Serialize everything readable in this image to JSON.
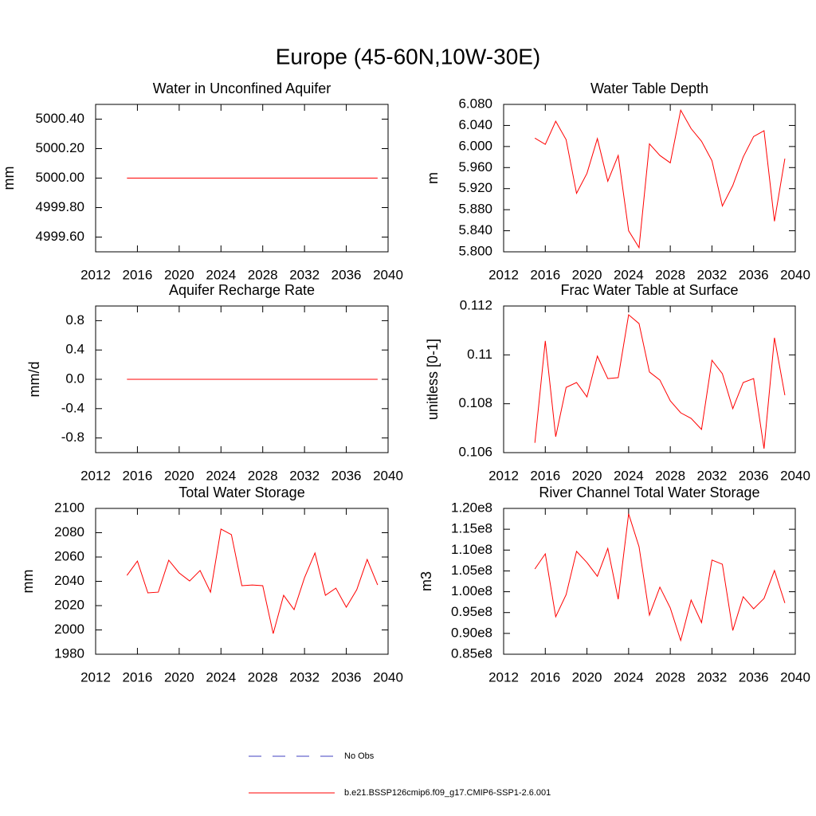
{
  "title": "Europe (45-60N,10W-30E)",
  "legend": [
    {
      "name": "No Obs",
      "color": "#4040c0",
      "dashed": true
    },
    {
      "name": "b.e21.BSSP126cmip6.f09_g17.CMIP6-SSP1-2.6.001",
      "color": "#ff0000",
      "dashed": false
    }
  ],
  "chart_data": [
    {
      "type": "line",
      "title": "Water in Unconfined Aquifer",
      "ylabel": "mm",
      "color": "#ff0000",
      "x": [
        2015,
        2016,
        2017,
        2018,
        2019,
        2020,
        2021,
        2022,
        2023,
        2024,
        2025,
        2026,
        2027,
        2028,
        2029,
        2030,
        2031,
        2032,
        2033,
        2034,
        2035,
        2036,
        2037,
        2038,
        2039
      ],
      "values": [
        5000,
        5000,
        5000,
        5000,
        5000,
        5000,
        5000,
        5000,
        5000,
        5000,
        5000,
        5000,
        5000,
        5000,
        5000,
        5000,
        5000,
        5000,
        5000,
        5000,
        5000,
        5000,
        5000,
        5000,
        5000
      ],
      "xlim": [
        2012,
        2040
      ],
      "xticks": [
        2012,
        2016,
        2020,
        2024,
        2028,
        2032,
        2036,
        2040
      ],
      "ylim": [
        4999.5,
        5000.5
      ],
      "yticks": [
        {
          "value": 4999.6,
          "label": "4999.60"
        },
        {
          "value": 4999.8,
          "label": "4999.80"
        },
        {
          "value": 5000.0,
          "label": "5000.00"
        },
        {
          "value": 5000.2,
          "label": "5000.20"
        },
        {
          "value": 5000.4,
          "label": "5000.40"
        }
      ]
    },
    {
      "type": "line",
      "title": "Water Table Depth",
      "ylabel": "m",
      "color": "#ff0000",
      "x": [
        2015,
        2016,
        2017,
        2018,
        2019,
        2020,
        2021,
        2022,
        2023,
        2024,
        2025,
        2026,
        2027,
        2028,
        2029,
        2030,
        2031,
        2032,
        2033,
        2034,
        2035,
        2036,
        2037,
        2038,
        2039
      ],
      "values": [
        6.016,
        6.004,
        6.048,
        6.013,
        5.911,
        5.949,
        6.015,
        5.934,
        5.983,
        5.84,
        5.808,
        6.005,
        5.983,
        5.969,
        6.069,
        6.034,
        6.01,
        5.973,
        5.887,
        5.926,
        5.98,
        6.019,
        6.03,
        5.858,
        5.977
      ],
      "xlim": [
        2012,
        2040
      ],
      "xticks": [
        2012,
        2016,
        2020,
        2024,
        2028,
        2032,
        2036,
        2040
      ],
      "ylim": [
        5.8,
        6.08
      ],
      "yticks": [
        {
          "value": 5.8,
          "label": "5.800"
        },
        {
          "value": 5.84,
          "label": "5.840"
        },
        {
          "value": 5.88,
          "label": "5.880"
        },
        {
          "value": 5.92,
          "label": "5.920"
        },
        {
          "value": 5.96,
          "label": "5.960"
        },
        {
          "value": 6.0,
          "label": "6.000"
        },
        {
          "value": 6.04,
          "label": "6.040"
        },
        {
          "value": 6.08,
          "label": "6.080"
        }
      ]
    },
    {
      "type": "line",
      "title": "Aquifer Recharge Rate",
      "ylabel": "mm/d",
      "color": "#ff0000",
      "x": [
        2015,
        2016,
        2017,
        2018,
        2019,
        2020,
        2021,
        2022,
        2023,
        2024,
        2025,
        2026,
        2027,
        2028,
        2029,
        2030,
        2031,
        2032,
        2033,
        2034,
        2035,
        2036,
        2037,
        2038,
        2039
      ],
      "values": [
        0,
        0,
        0,
        0,
        0,
        0,
        0,
        0,
        0,
        0,
        0,
        0,
        0,
        0,
        0,
        0,
        0,
        0,
        0,
        0,
        0,
        0,
        0,
        0,
        0
      ],
      "xlim": [
        2012,
        2040
      ],
      "xticks": [
        2012,
        2016,
        2020,
        2024,
        2028,
        2032,
        2036,
        2040
      ],
      "ylim": [
        -1,
        1
      ],
      "yticks": [
        {
          "value": -0.8,
          "label": "-0.8"
        },
        {
          "value": -0.4,
          "label": "-0.4"
        },
        {
          "value": 0,
          "label": "0.0"
        },
        {
          "value": 0.4,
          "label": "0.4"
        },
        {
          "value": 0.8,
          "label": "0.8"
        }
      ]
    },
    {
      "type": "line",
      "title": "Frac Water Table at Surface",
      "ylabel": "unitless [0-1]",
      "color": "#ff0000",
      "x": [
        2015,
        2016,
        2017,
        2018,
        2019,
        2020,
        2021,
        2022,
        2023,
        2024,
        2025,
        2026,
        2027,
        2028,
        2029,
        2030,
        2031,
        2032,
        2033,
        2034,
        2035,
        2036,
        2037,
        2038,
        2039
      ],
      "values": [
        0.1064,
        0.11057,
        0.10665,
        0.10867,
        0.10887,
        0.10828,
        0.10995,
        0.10903,
        0.10907,
        0.11164,
        0.11128,
        0.1093,
        0.10897,
        0.10812,
        0.10763,
        0.1074,
        0.10695,
        0.10978,
        0.10923,
        0.1078,
        0.10887,
        0.10903,
        0.10616,
        0.1107,
        0.10835
      ],
      "xlim": [
        2012,
        2040
      ],
      "xticks": [
        2012,
        2016,
        2020,
        2024,
        2028,
        2032,
        2036,
        2040
      ],
      "ylim": [
        0.106,
        0.112
      ],
      "yticks": [
        0.106,
        0.108,
        0.11,
        0.112
      ]
    },
    {
      "type": "line",
      "title": "Total Water Storage",
      "ylabel": "mm",
      "color": "#ff0000",
      "x": [
        2015,
        2016,
        2017,
        2018,
        2019,
        2020,
        2021,
        2022,
        2023,
        2024,
        2025,
        2026,
        2027,
        2028,
        2029,
        2030,
        2031,
        2032,
        2033,
        2034,
        2035,
        2036,
        2037,
        2038,
        2039
      ],
      "values": [
        2044.9,
        2056.7,
        2030.5,
        2031.1,
        2057.4,
        2046.9,
        2040.3,
        2048.9,
        2031.1,
        2083,
        2078.4,
        2036.4,
        2037,
        2036.4,
        1997,
        2028.5,
        2016.7,
        2043,
        2063.3,
        2028.5,
        2034.4,
        2018.7,
        2033.1,
        2058,
        2037
      ],
      "xlim": [
        2012,
        2040
      ],
      "xticks": [
        2012,
        2016,
        2020,
        2024,
        2028,
        2032,
        2036,
        2040
      ],
      "ylim": [
        1980,
        2100
      ],
      "yticks": [
        1980,
        2000,
        2020,
        2040,
        2060,
        2080,
        2100
      ]
    },
    {
      "type": "line",
      "title": "River Channel Total Water Storage",
      "ylabel": "m3",
      "color": "#ff0000",
      "x": [
        2015,
        2016,
        2017,
        2018,
        2019,
        2020,
        2021,
        2022,
        2023,
        2024,
        2025,
        2026,
        2027,
        2028,
        2029,
        2030,
        2031,
        2032,
        2033,
        2034,
        2035,
        2036,
        2037,
        2038,
        2039
      ],
      "values": [
        105470000,
        109100000,
        94000000,
        99300000,
        109700000,
        107000000,
        103700000,
        110400000,
        98200000,
        118700000,
        110800000,
        94400000,
        101100000,
        96100000,
        88300000,
        98000000,
        92600000,
        107600000,
        106600000,
        90700000,
        98800000,
        95900000,
        98400000,
        105100000,
        97300000
      ],
      "xlim": [
        2012,
        2040
      ],
      "xticks": [
        2012,
        2016,
        2020,
        2024,
        2028,
        2032,
        2036,
        2040
      ],
      "ylim": [
        85000000,
        120000000
      ],
      "yticks": [
        {
          "value": 85000000,
          "label": "0.85e8"
        },
        {
          "value": 90000000,
          "label": "0.90e8"
        },
        {
          "value": 95000000,
          "label": "0.95e8"
        },
        {
          "value": 100000000,
          "label": "1.00e8"
        },
        {
          "value": 105000000,
          "label": "1.05e8"
        },
        {
          "value": 110000000,
          "label": "1.10e8"
        },
        {
          "value": 115000000,
          "label": "1.15e8"
        },
        {
          "value": 120000000,
          "label": "1.20e8"
        }
      ]
    }
  ]
}
